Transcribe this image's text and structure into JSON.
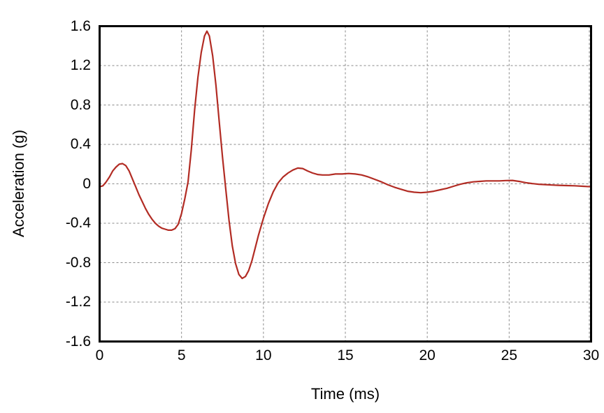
{
  "chart_data": {
    "type": "line",
    "title": "",
    "xlabel": "Time (ms)",
    "ylabel": "Acceleration (g)",
    "xlim": [
      0,
      30
    ],
    "ylim": [
      -1.6,
      1.6
    ],
    "x_ticks": [
      0,
      5,
      10,
      15,
      20,
      25,
      30
    ],
    "y_ticks": [
      -1.6,
      -1.2,
      -0.8,
      -0.4,
      0,
      0.4,
      0.8,
      1.2,
      1.6
    ],
    "grid": {
      "style": "dashed",
      "color": "#8a8a8a"
    },
    "legend": "none",
    "frame_color": "#000000",
    "background": "#ffffff",
    "series": [
      {
        "name": "acceleration",
        "color": "#b22c24",
        "x": [
          0,
          0.2,
          0.4,
          0.6,
          0.8,
          1.0,
          1.2,
          1.4,
          1.6,
          1.8,
          2.0,
          2.2,
          2.4,
          2.6,
          2.8,
          3.0,
          3.2,
          3.4,
          3.6,
          3.8,
          4.0,
          4.2,
          4.4,
          4.6,
          4.8,
          5.0,
          5.2,
          5.4,
          5.6,
          5.8,
          6.0,
          6.2,
          6.4,
          6.55,
          6.7,
          6.9,
          7.1,
          7.3,
          7.5,
          7.7,
          7.9,
          8.1,
          8.3,
          8.5,
          8.7,
          8.9,
          9.1,
          9.3,
          9.5,
          9.7,
          10.0,
          10.3,
          10.6,
          10.9,
          11.2,
          11.5,
          11.8,
          12.1,
          12.4,
          12.7,
          13.0,
          13.3,
          13.6,
          14.0,
          14.4,
          14.8,
          15.2,
          15.6,
          16.0,
          16.4,
          16.8,
          17.2,
          17.6,
          18.0,
          18.4,
          18.8,
          19.2,
          19.6,
          20.0,
          20.4,
          20.8,
          21.2,
          21.6,
          22.0,
          22.4,
          22.8,
          23.2,
          23.6,
          24.0,
          24.4,
          24.8,
          25.2,
          25.6,
          26.0,
          26.4,
          26.8,
          27.2,
          27.6,
          28.0,
          28.5,
          29.0,
          29.5,
          30.0
        ],
        "y": [
          -0.03,
          -0.02,
          0.02,
          0.07,
          0.13,
          0.17,
          0.2,
          0.205,
          0.185,
          0.13,
          0.05,
          -0.03,
          -0.11,
          -0.18,
          -0.25,
          -0.31,
          -0.36,
          -0.4,
          -0.43,
          -0.45,
          -0.46,
          -0.47,
          -0.47,
          -0.455,
          -0.41,
          -0.3,
          -0.15,
          0.02,
          0.35,
          0.75,
          1.08,
          1.33,
          1.5,
          1.55,
          1.5,
          1.3,
          1.0,
          0.63,
          0.27,
          -0.05,
          -0.37,
          -0.63,
          -0.81,
          -0.92,
          -0.96,
          -0.94,
          -0.88,
          -0.78,
          -0.65,
          -0.52,
          -0.35,
          -0.2,
          -0.08,
          0.01,
          0.07,
          0.11,
          0.14,
          0.16,
          0.155,
          0.13,
          0.11,
          0.095,
          0.09,
          0.09,
          0.1,
          0.1,
          0.105,
          0.1,
          0.09,
          0.07,
          0.045,
          0.02,
          -0.01,
          -0.035,
          -0.055,
          -0.075,
          -0.085,
          -0.09,
          -0.085,
          -0.075,
          -0.06,
          -0.045,
          -0.025,
          -0.005,
          0.01,
          0.02,
          0.025,
          0.03,
          0.03,
          0.03,
          0.033,
          0.035,
          0.025,
          0.012,
          0.003,
          -0.004,
          -0.008,
          -0.012,
          -0.015,
          -0.018,
          -0.02,
          -0.025,
          -0.03
        ]
      }
    ]
  }
}
